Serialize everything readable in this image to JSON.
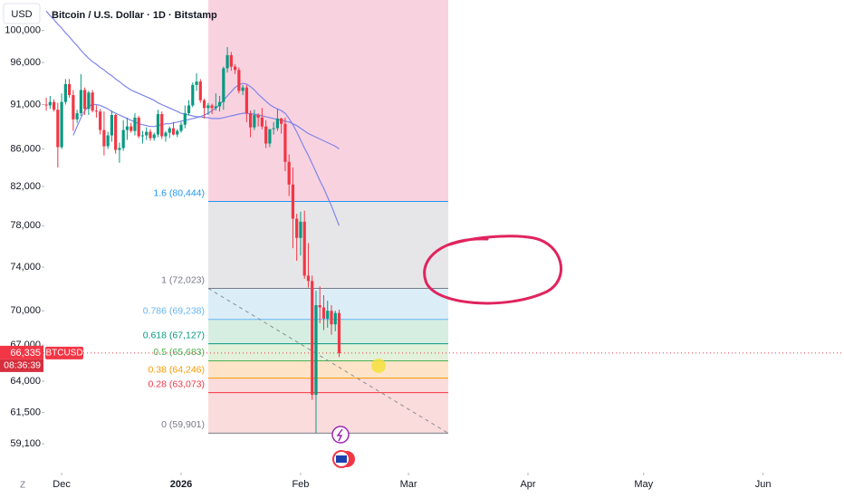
{
  "chart_data": {
    "type": "candlestick",
    "title": "Bitcoin / U.S. Dollar · 1D · Bitstamp",
    "currency_button": "USD",
    "symbol": "BTCUSD",
    "scale_button": "Z",
    "log_scale": true,
    "up_color": "#089981",
    "down_color": "#f23645",
    "ylim": [
      57100,
      103950
    ],
    "yticks": [
      {
        "value": 100000,
        "label": "100,000"
      },
      {
        "value": 96000,
        "label": "96,000"
      },
      {
        "value": 91000,
        "label": "91,000"
      },
      {
        "value": 86000,
        "label": "86,000"
      },
      {
        "value": 82000,
        "label": "82,000"
      },
      {
        "value": 78000,
        "label": "78,000"
      },
      {
        "value": 74000,
        "label": "74,000"
      },
      {
        "value": 70000,
        "label": "70,000"
      },
      {
        "value": 67000,
        "label": "67,000"
      },
      {
        "value": 64000,
        "label": "64,000"
      },
      {
        "value": 61500,
        "label": "61,500"
      },
      {
        "value": 59100,
        "label": "59,100"
      }
    ],
    "xlim": [
      -12,
      207
    ],
    "xticks": [
      {
        "value": 4,
        "label": "Dec"
      },
      {
        "value": 35,
        "label": "2026"
      },
      {
        "value": 66,
        "label": "Feb"
      },
      {
        "value": 94,
        "label": "Mar"
      },
      {
        "value": 125,
        "label": "Apr"
      },
      {
        "value": 155,
        "label": "May"
      },
      {
        "value": 186,
        "label": "Jun"
      }
    ],
    "last_price": {
      "value": 66335,
      "label": "66,335",
      "countdown": "08:36:39",
      "color": "#f23645"
    },
    "ohlc": [
      [
        91000,
        91800,
        90300,
        90900
      ],
      [
        90900,
        92000,
        90500,
        91300
      ],
      [
        91300,
        91600,
        90200,
        90400
      ],
      [
        90400,
        91200,
        84000,
        86200
      ],
      [
        86200,
        92300,
        86000,
        91300
      ],
      [
        91300,
        94000,
        91000,
        93400
      ],
      [
        93400,
        94000,
        91800,
        92100
      ],
      [
        92100,
        92700,
        88000,
        89300
      ],
      [
        89300,
        90400,
        88900,
        90000
      ],
      [
        90000,
        94600,
        89700,
        92700
      ],
      [
        92700,
        93000,
        89800,
        90500
      ],
      [
        90500,
        92600,
        89800,
        92400
      ],
      [
        92400,
        92700,
        90100,
        90300
      ],
      [
        90300,
        90900,
        89500,
        90200
      ],
      [
        90200,
        90500,
        87600,
        88100
      ],
      [
        88100,
        90200,
        85300,
        86300
      ],
      [
        86300,
        87900,
        86000,
        87500
      ],
      [
        87500,
        90300,
        86800,
        89800
      ],
      [
        89800,
        89900,
        85500,
        85900
      ],
      [
        85900,
        86700,
        84500,
        86100
      ],
      [
        86100,
        89200,
        85800,
        88100
      ],
      [
        88100,
        89500,
        87000,
        88500
      ],
      [
        88500,
        88900,
        87800,
        88000
      ],
      [
        88000,
        90000,
        87500,
        89500
      ],
      [
        89500,
        89700,
        87200,
        87400
      ],
      [
        87400,
        88000,
        86600,
        87500
      ],
      [
        87500,
        88400,
        87000,
        87900
      ],
      [
        87900,
        88200,
        86900,
        87200
      ],
      [
        87200,
        87800,
        86900,
        87600
      ],
      [
        87600,
        90400,
        87300,
        89900
      ],
      [
        89900,
        90200,
        87100,
        87400
      ],
      [
        87400,
        88000,
        86800,
        87800
      ],
      [
        87800,
        88500,
        87200,
        88300
      ],
      [
        88300,
        89000,
        87500,
        87600
      ],
      [
        87600,
        88200,
        87300,
        88000
      ],
      [
        88000,
        89000,
        87800,
        88700
      ],
      [
        88700,
        90900,
        88300,
        90000
      ],
      [
        90000,
        91500,
        89800,
        90900
      ],
      [
        90900,
        93600,
        90700,
        93300
      ],
      [
        93300,
        94700,
        92600,
        93700
      ],
      [
        93700,
        94000,
        91200,
        91500
      ],
      [
        91500,
        91700,
        89400,
        90600
      ],
      [
        90600,
        91200,
        89800,
        90900
      ],
      [
        90900,
        91100,
        89900,
        90600
      ],
      [
        90600,
        92300,
        90300,
        90800
      ],
      [
        90800,
        92000,
        90200,
        91300
      ],
      [
        91300,
        95500,
        90400,
        95300
      ],
      [
        95300,
        97900,
        94800,
        96900
      ],
      [
        96900,
        97300,
        95000,
        95500
      ],
      [
        95500,
        95800,
        94600,
        95100
      ],
      [
        95100,
        95400,
        92300,
        92600
      ],
      [
        92600,
        93300,
        92100,
        93000
      ],
      [
        93000,
        93300,
        89000,
        90000
      ],
      [
        90000,
        90300,
        87300,
        88400
      ],
      [
        88400,
        90400,
        88100,
        89800
      ],
      [
        89800,
        90000,
        88500,
        89500
      ],
      [
        89500,
        90600,
        88200,
        88500
      ],
      [
        88500,
        89200,
        86100,
        86600
      ],
      [
        86600,
        88200,
        86200,
        88200
      ],
      [
        88200,
        89000,
        87600,
        88300
      ],
      [
        88300,
        90500,
        88000,
        89400
      ],
      [
        89400,
        89500,
        87700,
        88800
      ],
      [
        88800,
        89500,
        83600,
        84600
      ],
      [
        84600,
        85400,
        81000,
        82200
      ],
      [
        82200,
        84000,
        75800,
        78700
      ],
      [
        78700,
        79200,
        74600,
        76800
      ],
      [
        76800,
        79400,
        75100,
        78400
      ],
      [
        78400,
        79500,
        72900,
        73200
      ],
      [
        73200,
        76300,
        72100,
        72700
      ],
      [
        72700,
        73200,
        62500,
        62900
      ],
      [
        62900,
        71800,
        59900,
        70500
      ],
      [
        70500,
        72200,
        68900,
        70300
      ],
      [
        70300,
        71400,
        68300,
        69300
      ],
      [
        69300,
        70900,
        68500,
        70000
      ],
      [
        70000,
        70500,
        67900,
        68800
      ],
      [
        68800,
        70000,
        68200,
        69800
      ],
      [
        69800,
        70100,
        66000,
        66335
      ]
    ],
    "moving_averages": [
      {
        "color": "#7e84e8",
        "values": [
          102500,
          101900,
          101400,
          100800,
          100300,
          99700,
          99200,
          98600,
          98100,
          97500,
          97000,
          96500,
          96100,
          95800,
          95400,
          95100,
          94700,
          94400,
          94000,
          93700,
          93300,
          93000,
          92700,
          92500,
          92300,
          92100,
          91900,
          91700,
          91500,
          91200,
          91000,
          90800,
          90600,
          90400,
          90200,
          90000,
          89900,
          89800,
          89700,
          89600,
          89600,
          89500,
          89500,
          89400,
          89400,
          89400,
          89500,
          89600,
          89700,
          89800,
          89900,
          90000,
          90000,
          89900,
          89900,
          89800,
          89700,
          89600,
          89500,
          89400,
          89300,
          89200,
          89100,
          89000,
          88800,
          88600,
          88300,
          88000,
          87700,
          87500,
          87300,
          87100,
          86900,
          86700,
          86500,
          86300,
          86000
        ]
      },
      {
        "color": "#7e84e8",
        "values": [
          null,
          null,
          null,
          null,
          null,
          null,
          null,
          87500,
          88500,
          89500,
          90300,
          90800,
          91000,
          91000,
          90900,
          90700,
          90500,
          90200,
          90000,
          89800,
          89600,
          89400,
          89200,
          89000,
          88800,
          88700,
          88600,
          88500,
          88500,
          88600,
          88700,
          88800,
          88800,
          88900,
          89000,
          89100,
          89200,
          89300,
          89400,
          89500,
          89600,
          89800,
          90000,
          90300,
          90600,
          91000,
          91500,
          92000,
          92500,
          93000,
          93300,
          93500,
          93400,
          93100,
          92700,
          92200,
          91800,
          91400,
          91000,
          90700,
          90500,
          90300,
          90000,
          89400,
          88700,
          87900,
          87000,
          86100,
          85300,
          84400,
          83500,
          82600,
          81800,
          80900,
          80000,
          79000,
          78000
        ]
      }
    ],
    "fib_levels": [
      {
        "value": 80444,
        "label": "1.6 (80,444)",
        "color": "#2196f3",
        "fill": "#d3e6fb"
      },
      {
        "value": 72023,
        "label": "1 (72,023)",
        "color": "#787b86",
        "fill": "#e6e6e8"
      },
      {
        "value": 69238,
        "label": "0.786 (69,238)",
        "color": "#64b5f6",
        "fill": "#dbeef8"
      },
      {
        "value": 67127,
        "label": "0.618 (67,127)",
        "color": "#089981",
        "fill": "#d6eee2"
      },
      {
        "value": 65683,
        "label": "0.5 (65,683)",
        "color": "#4caf50",
        "fill": "#e2f1d9"
      },
      {
        "value": 64246,
        "label": "0.38 (64,246)",
        "color": "#ff9800",
        "fill": "#fde4c8"
      },
      {
        "value": 63073,
        "label": "0.28 (63,073)",
        "color": "#f23645",
        "fill": "#fbdcdc"
      },
      {
        "value": 59901,
        "label": "0 (59,901)",
        "color": "#787b86",
        "fill": "#fbdcdc"
      }
    ]
  }
}
